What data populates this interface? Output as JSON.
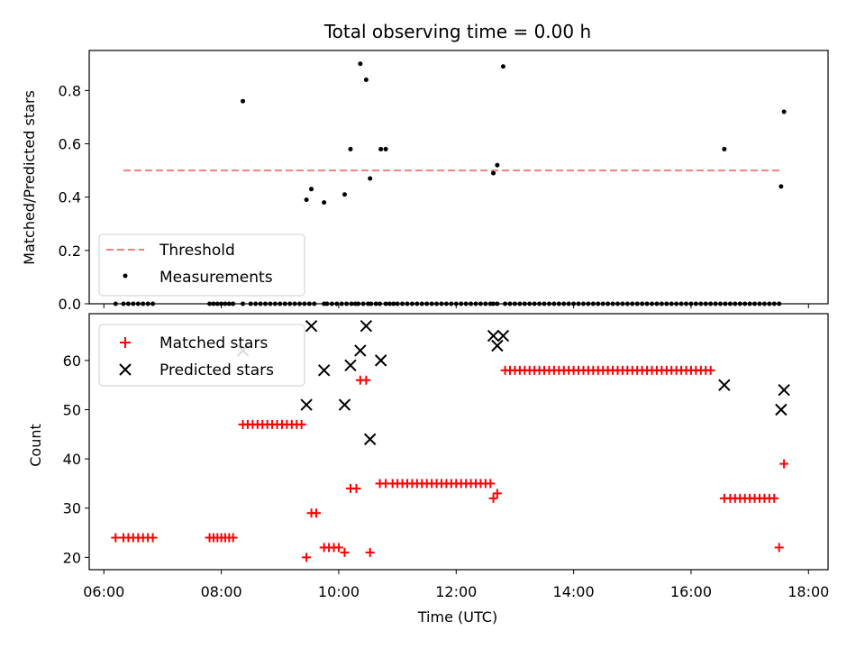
{
  "chart_data": [
    {
      "type": "scatter",
      "title": "Total observing time = 0.00 h",
      "ylabel": "Matched/Predicted stars",
      "xlabel": "",
      "ylim": [
        0,
        0.95
      ],
      "yticks": [
        "0.0",
        "0.2",
        "0.4",
        "0.6",
        "0.8"
      ],
      "yticks_values": [
        0.0,
        0.2,
        0.4,
        0.6,
        0.8
      ],
      "legend_position": "lower-left",
      "threshold": {
        "name": "Threshold",
        "value": 0.5,
        "x_start": "06:20",
        "x_end": "17:32",
        "color": "#f08080"
      },
      "series": [
        {
          "name": "Measurements",
          "color": "#000000",
          "x": [
            "06:12",
            "06:20",
            "06:25",
            "06:30",
            "06:35",
            "06:40",
            "06:45",
            "06:50",
            "07:48",
            "07:52",
            "07:56",
            "08:00",
            "08:04",
            "08:08",
            "08:12",
            "08:22",
            "08:30",
            "08:35",
            "08:40",
            "08:45",
            "08:50",
            "08:55",
            "09:00",
            "09:05",
            "09:10",
            "09:15",
            "09:20",
            "09:25",
            "09:30",
            "09:35",
            "09:45",
            "09:48",
            "09:53",
            "09:58",
            "10:03",
            "10:08",
            "10:13",
            "10:17",
            "10:20",
            "10:25",
            "10:30",
            "10:33",
            "10:38",
            "10:42",
            "10:48",
            "10:52",
            "10:56",
            "11:00",
            "11:05",
            "11:10",
            "11:15",
            "11:20",
            "11:25",
            "11:30",
            "11:35",
            "11:40",
            "11:45",
            "11:50",
            "11:55",
            "12:00",
            "12:05",
            "12:10",
            "12:15",
            "12:20",
            "12:25",
            "12:30",
            "12:35",
            "12:38",
            "12:42",
            "12:50",
            "12:55",
            "13:00",
            "13:05",
            "13:10",
            "13:15",
            "13:20",
            "13:25",
            "13:30",
            "13:35",
            "13:40",
            "13:45",
            "13:50",
            "13:55",
            "14:00",
            "14:05",
            "14:10",
            "14:15",
            "14:20",
            "14:25",
            "14:30",
            "14:35",
            "14:40",
            "14:45",
            "14:50",
            "14:55",
            "15:00",
            "15:05",
            "15:10",
            "15:15",
            "15:20",
            "15:25",
            "15:30",
            "15:35",
            "15:40",
            "15:45",
            "15:50",
            "15:55",
            "16:00",
            "16:05",
            "16:10",
            "16:15",
            "16:20",
            "16:25",
            "16:30",
            "16:35",
            "16:40",
            "16:45",
            "16:50",
            "16:55",
            "17:00",
            "17:05",
            "17:10",
            "17:15",
            "17:20",
            "17:25",
            "17:30",
            "08:22",
            "09:27",
            "09:32",
            "09:45",
            "10:06",
            "10:12",
            "10:22",
            "10:28",
            "10:32",
            "10:43",
            "10:48",
            "12:38",
            "12:42",
            "12:48",
            "16:34",
            "17:32",
            "17:35"
          ],
          "y": [
            0,
            0,
            0,
            0,
            0,
            0,
            0,
            0,
            0,
            0,
            0,
            0,
            0,
            0,
            0,
            0,
            0,
            0,
            0,
            0,
            0,
            0,
            0,
            0,
            0,
            0,
            0,
            0,
            0,
            0,
            0,
            0,
            0,
            0,
            0,
            0,
            0,
            0,
            0,
            0,
            0,
            0,
            0,
            0,
            0,
            0,
            0,
            0,
            0,
            0,
            0,
            0,
            0,
            0,
            0,
            0,
            0,
            0,
            0,
            0,
            0,
            0,
            0,
            0,
            0,
            0,
            0,
            0,
            0,
            0,
            0,
            0,
            0,
            0,
            0,
            0,
            0,
            0,
            0,
            0,
            0,
            0,
            0,
            0,
            0,
            0,
            0,
            0,
            0,
            0,
            0,
            0,
            0,
            0,
            0,
            0,
            0,
            0,
            0,
            0,
            0,
            0,
            0,
            0,
            0,
            0,
            0,
            0,
            0,
            0,
            0,
            0,
            0,
            0,
            0,
            0,
            0,
            0,
            0,
            0,
            0,
            0,
            0,
            0,
            0,
            0,
            0.76,
            0.39,
            0.43,
            0.38,
            0.41,
            0.58,
            0.9,
            0.84,
            0.47,
            0.58,
            0.58,
            0.49,
            0.52,
            0.89,
            0.58,
            0.44,
            0.72
          ]
        }
      ]
    },
    {
      "type": "scatter",
      "title": "",
      "xlabel": "Time (UTC)",
      "ylabel": "Count",
      "ylim": [
        17.5,
        69.5
      ],
      "yticks": [
        "20",
        "30",
        "40",
        "50",
        "60"
      ],
      "yticks_values": [
        20,
        30,
        40,
        50,
        60
      ],
      "xlim": [
        "05:45",
        "18:20"
      ],
      "xticks": [
        "06:00",
        "08:00",
        "10:00",
        "12:00",
        "14:00",
        "16:00",
        "18:00"
      ],
      "legend_position": "top-left",
      "series": [
        {
          "name": "Matched stars",
          "color": "#ff0000",
          "marker": "plus",
          "x": [
            "06:12",
            "06:20",
            "06:25",
            "06:30",
            "06:35",
            "06:40",
            "06:45",
            "06:50",
            "07:48",
            "07:52",
            "07:56",
            "08:00",
            "08:04",
            "08:08",
            "08:12",
            "08:22",
            "08:27",
            "08:32",
            "08:37",
            "08:42",
            "08:47",
            "08:52",
            "08:57",
            "09:02",
            "09:07",
            "09:12",
            "09:17",
            "09:22",
            "09:27",
            "09:32",
            "09:37",
            "09:45",
            "09:50",
            "09:55",
            "10:00",
            "10:06",
            "10:12",
            "10:18",
            "10:22",
            "10:28",
            "10:32",
            "10:42",
            "10:48",
            "10:55",
            "11:00",
            "11:05",
            "11:10",
            "11:15",
            "11:20",
            "11:25",
            "11:30",
            "11:35",
            "11:40",
            "11:45",
            "11:50",
            "11:55",
            "12:00",
            "12:05",
            "12:10",
            "12:15",
            "12:20",
            "12:25",
            "12:30",
            "12:35",
            "12:38",
            "12:42",
            "12:50",
            "12:55",
            "13:00",
            "13:05",
            "13:10",
            "13:15",
            "13:20",
            "13:25",
            "13:30",
            "13:35",
            "13:40",
            "13:45",
            "13:50",
            "13:55",
            "14:00",
            "14:05",
            "14:10",
            "14:15",
            "14:20",
            "14:25",
            "14:30",
            "14:35",
            "14:40",
            "14:45",
            "14:50",
            "14:55",
            "15:00",
            "15:05",
            "15:10",
            "15:15",
            "15:20",
            "15:25",
            "15:30",
            "15:35",
            "15:40",
            "15:45",
            "15:50",
            "15:55",
            "16:00",
            "16:05",
            "16:10",
            "16:15",
            "16:20",
            "16:34",
            "16:40",
            "16:45",
            "16:50",
            "16:55",
            "17:00",
            "17:05",
            "17:10",
            "17:15",
            "17:20",
            "17:25",
            "17:30",
            "17:35"
          ],
          "y": [
            24,
            24,
            24,
            24,
            24,
            24,
            24,
            24,
            24,
            24,
            24,
            24,
            24,
            24,
            24,
            47,
            47,
            47,
            47,
            47,
            47,
            47,
            47,
            47,
            47,
            47,
            47,
            47,
            20,
            29,
            29,
            22,
            22,
            22,
            22,
            21,
            34,
            34,
            56,
            56,
            21,
            35,
            35,
            35,
            35,
            35,
            35,
            35,
            35,
            35,
            35,
            35,
            35,
            35,
            35,
            35,
            35,
            35,
            35,
            35,
            35,
            35,
            35,
            35,
            32,
            33,
            58,
            58,
            58,
            58,
            58,
            58,
            58,
            58,
            58,
            58,
            58,
            58,
            58,
            58,
            58,
            58,
            58,
            58,
            58,
            58,
            58,
            58,
            58,
            58,
            58,
            58,
            58,
            58,
            58,
            58,
            58,
            58,
            58,
            58,
            58,
            58,
            58,
            58,
            58,
            58,
            58,
            58,
            58,
            32,
            32,
            32,
            32,
            32,
            32,
            32,
            32,
            32,
            32,
            32,
            22,
            39
          ]
        },
        {
          "name": "Predicted stars",
          "color": "#000000",
          "marker": "x",
          "x": [
            "08:22",
            "09:27",
            "09:32",
            "09:45",
            "10:06",
            "10:12",
            "10:22",
            "10:28",
            "10:32",
            "10:43",
            "12:38",
            "12:42",
            "12:48",
            "16:34",
            "17:32",
            "17:35"
          ],
          "y": [
            62,
            51,
            67,
            58,
            51,
            59,
            62,
            67,
            44,
            60,
            65,
            63,
            65,
            55,
            50,
            54
          ]
        }
      ]
    }
  ]
}
